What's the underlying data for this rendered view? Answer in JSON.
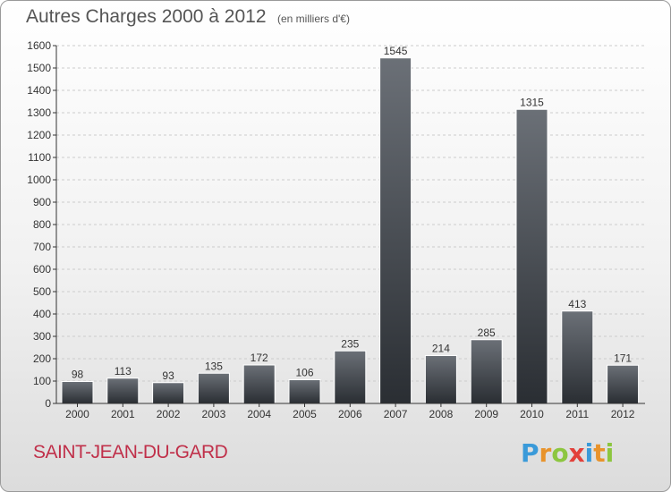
{
  "title": {
    "main": "Autres Charges 2000 à 2012",
    "sub": "(en milliers d'€)"
  },
  "city": "SAINT-JEAN-DU-GARD",
  "logo": {
    "text": "Proxiti",
    "letters": [
      {
        "ch": "P",
        "color": "#3a9ad9"
      },
      {
        "ch": "r",
        "color": "#e8932b"
      },
      {
        "ch": "o",
        "color": "#8cc63f"
      },
      {
        "ch": "x",
        "color": "#e2403a"
      },
      {
        "ch": "i",
        "color": "#3a9ad9"
      },
      {
        "ch": "t",
        "color": "#e8932b"
      },
      {
        "ch": "i",
        "color": "#8cc63f"
      }
    ]
  },
  "colors": {
    "bar_top": "#6b7077",
    "bar_bottom": "#2a2e33",
    "axis": "#333333",
    "grid": "#cccccc",
    "text": "#333333"
  },
  "chart_data": {
    "type": "bar",
    "categories": [
      "2000",
      "2001",
      "2002",
      "2003",
      "2004",
      "2005",
      "2006",
      "2007",
      "2008",
      "2009",
      "2010",
      "2011",
      "2012"
    ],
    "values": [
      98,
      113,
      93,
      135,
      172,
      106,
      235,
      1545,
      214,
      285,
      1315,
      413,
      171
    ],
    "title": "Autres Charges 2000 à 2012",
    "subtitle": "(en milliers d'€)",
    "ylim": [
      0,
      1600
    ],
    "yticks": [
      0,
      100,
      200,
      300,
      400,
      500,
      600,
      700,
      800,
      900,
      1000,
      1100,
      1200,
      1300,
      1400,
      1500,
      1600
    ],
    "grid": true,
    "data_labels": true
  }
}
